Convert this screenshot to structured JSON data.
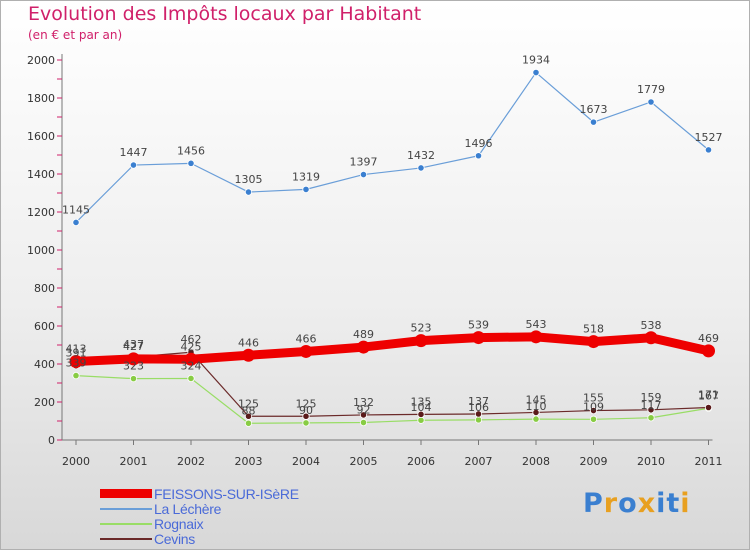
{
  "header": {
    "title": "Evolution des Impôts locaux par Habitant",
    "subtitle": "(en € et par an)"
  },
  "brand": {
    "text": "Proxiti",
    "letter_colors": [
      "#3a7fd0",
      "#e8a020",
      "#3a7fd0",
      "#e8a020",
      "#3a7fd0",
      "#3a7fd0",
      "#e8a020"
    ]
  },
  "colors": {
    "title": "#d0206a",
    "axis_text": "#333333",
    "value_label": "#444444",
    "legend_text": "#4a6ad8"
  },
  "chart_data": {
    "type": "line",
    "title": "Evolution des Impôts locaux par Habitant",
    "subtitle": "(en € et par an)",
    "xlabel": "",
    "ylabel": "",
    "x": [
      "2000",
      "2001",
      "2002",
      "2003",
      "2004",
      "2005",
      "2006",
      "2007",
      "2008",
      "2009",
      "2010",
      "2011"
    ],
    "ylim": [
      0,
      2000
    ],
    "yticks": [
      0,
      200,
      400,
      600,
      800,
      1000,
      1200,
      1400,
      1600,
      1800,
      2000
    ],
    "grid": false,
    "legend_position": "bottom-left",
    "series": [
      {
        "name": "FEISSONS-SUR-ISèRE",
        "color": "#ff0000",
        "values": [
          413,
          427,
          425,
          446,
          466,
          489,
          523,
          539,
          543,
          518,
          538,
          469
        ],
        "labels": [
          "413",
          "427",
          "425",
          "446",
          "466",
          "489",
          "523",
          "539",
          "543",
          "518",
          "538",
          "469"
        ]
      },
      {
        "name": "La Léchère",
        "color": "#6a9ed8",
        "values": [
          1145,
          1447,
          1456,
          1305,
          1319,
          1397,
          1432,
          1496,
          1934,
          1673,
          1779,
          1527
        ],
        "labels": [
          "1145",
          "1447",
          "1456",
          "1305",
          "1319",
          "1397",
          "1432",
          "1496",
          "1934",
          "1673",
          "1779",
          "1527"
        ]
      },
      {
        "name": "Rognaix",
        "color": "#99dd66",
        "values": [
          339,
          323,
          324,
          88,
          90,
          92,
          104,
          106,
          110,
          109,
          117,
          167
        ],
        "labels": [
          "339",
          "323",
          "324",
          "88",
          "90",
          "92",
          "104",
          "106",
          "110",
          "109",
          "117",
          "167"
        ]
      },
      {
        "name": "Cevins",
        "color": "#6b2a2a",
        "values": [
          391,
          437,
          462,
          125,
          125,
          132,
          135,
          137,
          145,
          155,
          159,
          171
        ],
        "labels": [
          "391",
          "437",
          "462",
          "125",
          "125",
          "132",
          "135",
          "137",
          "145",
          "155",
          "159",
          "171"
        ]
      }
    ]
  }
}
